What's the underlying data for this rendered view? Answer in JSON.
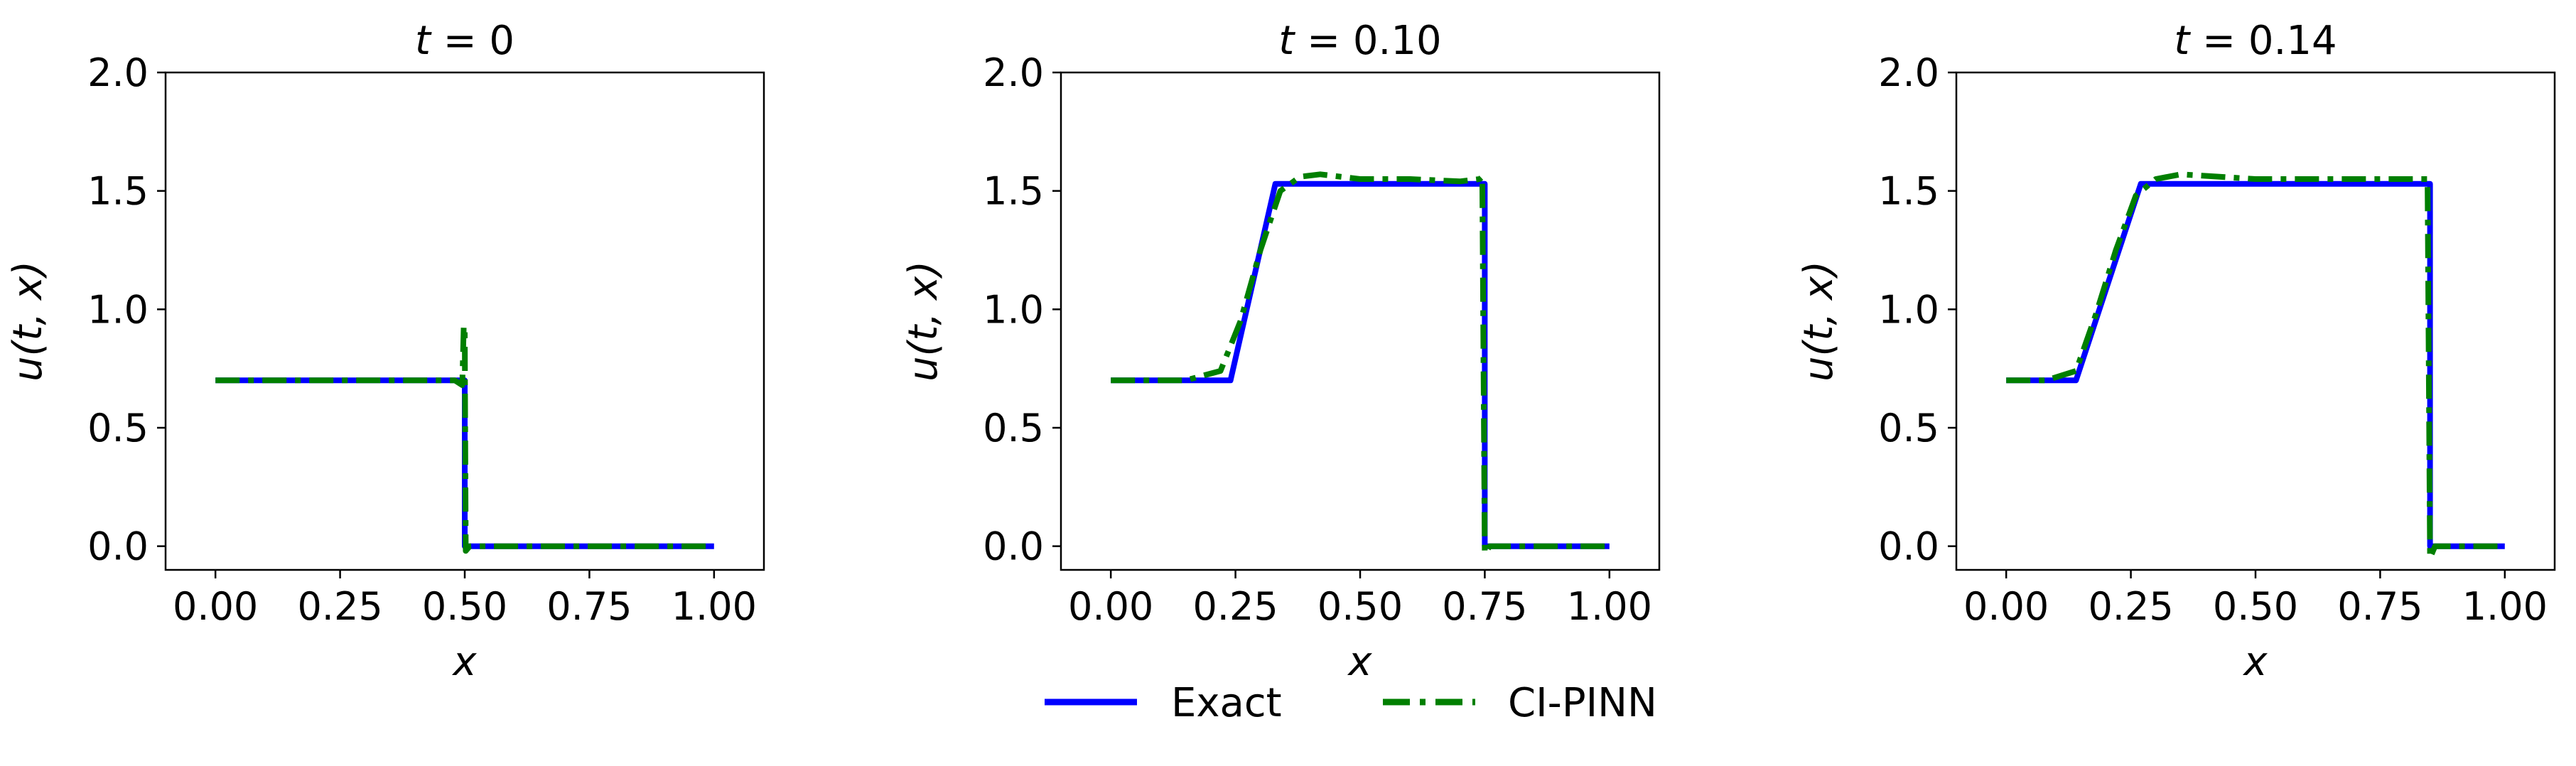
{
  "chart_data": [
    {
      "type": "line",
      "title": "t = 0",
      "xlabel": "x",
      "ylabel": "u(t, x)",
      "xlim": [
        -0.1,
        1.1
      ],
      "ylim": [
        -0.1,
        2.0
      ],
      "xticks": [
        "0.00",
        "0.25",
        "0.50",
        "0.75",
        "1.00"
      ],
      "yticks": [
        "0.0",
        "0.5",
        "1.0",
        "1.5",
        "2.0"
      ],
      "series": [
        {
          "name": "Exact",
          "x": [
            0.0,
            0.5,
            0.5,
            1.0
          ],
          "y": [
            0.7,
            0.7,
            0.0,
            0.0
          ]
        },
        {
          "name": "CI-PINN",
          "x": [
            0.0,
            0.48,
            0.495,
            0.498,
            0.5,
            0.502,
            0.51,
            1.0
          ],
          "y": [
            0.7,
            0.7,
            0.68,
            0.93,
            0.9,
            -0.02,
            0.0,
            0.0
          ]
        }
      ]
    },
    {
      "type": "line",
      "title": "t = 0.10",
      "xlabel": "x",
      "ylabel": "u(t, x)",
      "xlim": [
        -0.1,
        1.1
      ],
      "ylim": [
        -0.1,
        2.0
      ],
      "xticks": [
        "0.00",
        "0.25",
        "0.50",
        "0.75",
        "1.00"
      ],
      "yticks": [
        "0.0",
        "0.5",
        "1.0",
        "1.5",
        "2.0"
      ],
      "series": [
        {
          "name": "Exact",
          "x": [
            0.0,
            0.24,
            0.33,
            0.75,
            0.75,
            1.0
          ],
          "y": [
            0.7,
            0.7,
            1.53,
            1.53,
            0.0,
            0.0
          ]
        },
        {
          "name": "CI-PINN",
          "x": [
            0.0,
            0.15,
            0.22,
            0.26,
            0.3,
            0.34,
            0.38,
            0.42,
            0.5,
            0.6,
            0.7,
            0.74,
            0.745,
            0.75,
            0.76,
            1.0
          ],
          "y": [
            0.7,
            0.7,
            0.74,
            0.95,
            1.25,
            1.5,
            1.56,
            1.57,
            1.55,
            1.55,
            1.54,
            1.55,
            1.56,
            -0.03,
            0.0,
            0.0
          ]
        }
      ]
    },
    {
      "type": "line",
      "title": "t = 0.14",
      "xlabel": "x",
      "ylabel": "u(t, x)",
      "xlim": [
        -0.1,
        1.1
      ],
      "ylim": [
        -0.1,
        2.0
      ],
      "xticks": [
        "0.00",
        "0.25",
        "0.50",
        "0.75",
        "1.00"
      ],
      "yticks": [
        "0.0",
        "0.5",
        "1.0",
        "1.5",
        "2.0"
      ],
      "series": [
        {
          "name": "Exact",
          "x": [
            0.0,
            0.14,
            0.27,
            0.85,
            0.85,
            1.0
          ],
          "y": [
            0.7,
            0.7,
            1.53,
            1.53,
            0.0,
            0.0
          ]
        },
        {
          "name": "CI-PINN",
          "x": [
            0.0,
            0.08,
            0.14,
            0.18,
            0.22,
            0.26,
            0.3,
            0.35,
            0.5,
            0.7,
            0.84,
            0.845,
            0.85,
            0.86,
            1.0
          ],
          "y": [
            0.7,
            0.7,
            0.74,
            0.98,
            1.25,
            1.48,
            1.55,
            1.57,
            1.55,
            1.55,
            1.55,
            1.55,
            -0.05,
            0.0,
            0.0
          ]
        }
      ]
    }
  ],
  "legend": {
    "placement": "bottom-center",
    "items": [
      {
        "label": "Exact",
        "color": "#0000ff",
        "style": "solid"
      },
      {
        "label": "CI-PINN",
        "color": "#007f00",
        "style": "dashdot"
      }
    ]
  }
}
